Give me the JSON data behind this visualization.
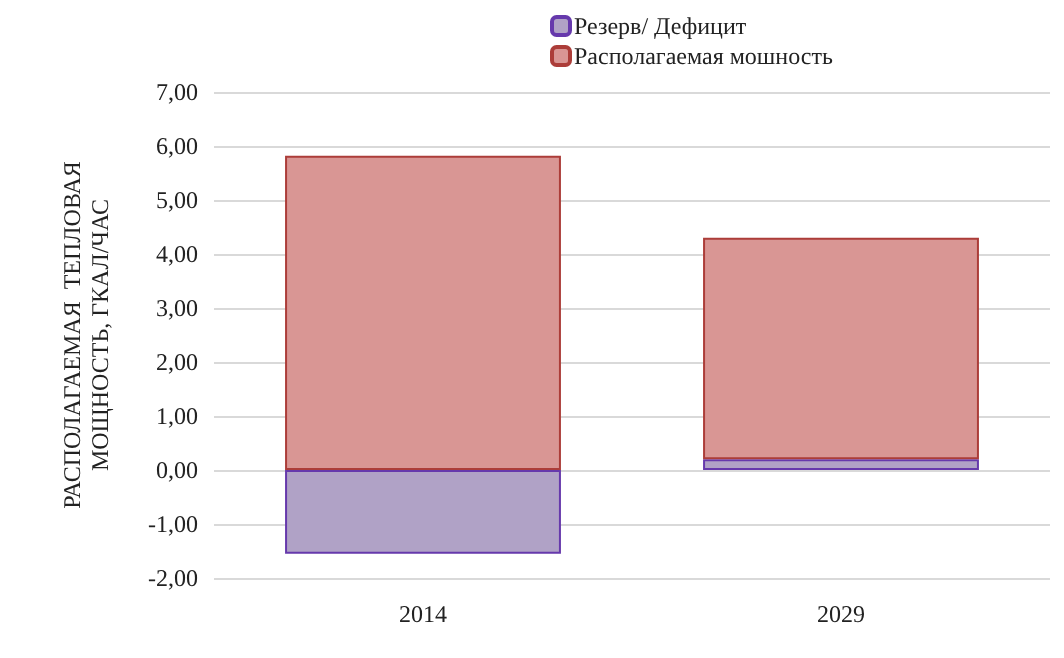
{
  "chart_data": {
    "type": "bar",
    "stacked": true,
    "ylabel": "РАСПОЛАГАЕМАЯ  ТЕПЛОВАЯ\nМОЩНОСТЬ, ГКАЛ/ЧАС",
    "categories": [
      "2014",
      "2029"
    ],
    "series": [
      {
        "name": "Резерв/ Дефицит",
        "color": "#b0a2c6",
        "values": [
          -1.55,
          0.2
        ]
      },
      {
        "name": "Располагаемая мошность",
        "color": "#d99694",
        "values": [
          5.82,
          4.1
        ]
      }
    ],
    "ylim": [
      -2,
      7
    ],
    "yticks": [
      {
        "value": -2,
        "label": "-2,00"
      },
      {
        "value": -1,
        "label": "-1,00"
      },
      {
        "value": 0,
        "label": "0,00"
      },
      {
        "value": 1,
        "label": "1,00"
      },
      {
        "value": 2,
        "label": "2,00"
      },
      {
        "value": 3,
        "label": "3,00"
      },
      {
        "value": 4,
        "label": "4,00"
      },
      {
        "value": 5,
        "label": "5,00"
      },
      {
        "value": 6,
        "label": "6,00"
      },
      {
        "value": 7,
        "label": "7,00"
      }
    ],
    "grid": "y",
    "legend": "top"
  }
}
